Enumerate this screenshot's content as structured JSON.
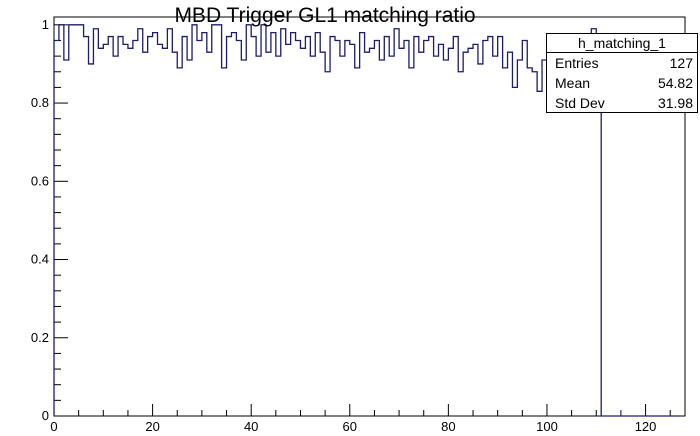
{
  "chart_data": {
    "type": "histogram",
    "title": "MBD Trigger GL1 matching ratio",
    "xlabel": "",
    "ylabel": "",
    "xlim": [
      0,
      128
    ],
    "ylim": [
      0,
      1.02
    ],
    "x_ticks": [
      0,
      20,
      40,
      60,
      80,
      100,
      120
    ],
    "x_tick_labels": [
      "0",
      "20",
      "40",
      "60",
      "80",
      "100",
      "120"
    ],
    "y_ticks": [
      0,
      0.2,
      0.4,
      0.6,
      0.8,
      1
    ],
    "y_tick_labels": [
      "0",
      "0.2",
      "0.4",
      "0.6",
      "0.8",
      "1"
    ],
    "line_color": "#1c1c6e",
    "grid": false,
    "bin_width": 1,
    "bin_values": [
      0.96,
      1.0,
      0.91,
      1.0,
      1.0,
      1.0,
      0.97,
      0.9,
      0.99,
      0.94,
      0.95,
      0.97,
      0.92,
      0.97,
      0.95,
      0.94,
      0.96,
      0.99,
      0.93,
      0.97,
      0.98,
      0.95,
      0.94,
      0.99,
      0.93,
      0.89,
      0.97,
      0.91,
      1.0,
      0.96,
      0.98,
      0.93,
      1.0,
      1.0,
      0.89,
      0.97,
      0.98,
      0.96,
      0.91,
      1.0,
      0.97,
      0.92,
      1.0,
      0.93,
      0.98,
      0.92,
      0.99,
      0.95,
      0.98,
      0.96,
      0.94,
      0.97,
      0.92,
      0.98,
      0.93,
      0.88,
      0.97,
      0.96,
      0.92,
      0.96,
      0.95,
      0.89,
      0.98,
      0.93,
      0.94,
      0.96,
      0.91,
      0.97,
      0.92,
      0.99,
      0.94,
      0.96,
      0.89,
      0.97,
      0.93,
      0.96,
      0.97,
      0.92,
      0.95,
      0.91,
      0.94,
      0.97,
      0.88,
      0.93,
      0.94,
      0.95,
      0.9,
      0.96,
      0.97,
      0.92,
      0.97,
      0.89,
      0.93,
      0.84,
      0.91,
      0.96,
      0.89,
      0.88,
      0.83,
      0.91,
      0.95,
      0.91,
      0.95,
      0.97,
      0.93,
      0.86,
      0.95,
      0.97,
      0.94,
      0.99,
      0.95,
      0.0,
      0.0,
      0.0,
      0.0,
      0.0,
      0.0,
      0.0,
      0.0,
      0.0,
      0.0,
      0.0,
      0.0,
      0.0,
      0.0,
      0.0,
      0.0
    ],
    "stats_box": {
      "name": "h_matching_1",
      "entries_label": "Entries",
      "entries": "127",
      "mean_label": "Mean",
      "mean": "54.82",
      "stddev_label": "Std Dev",
      "stddev": "31.98"
    }
  }
}
